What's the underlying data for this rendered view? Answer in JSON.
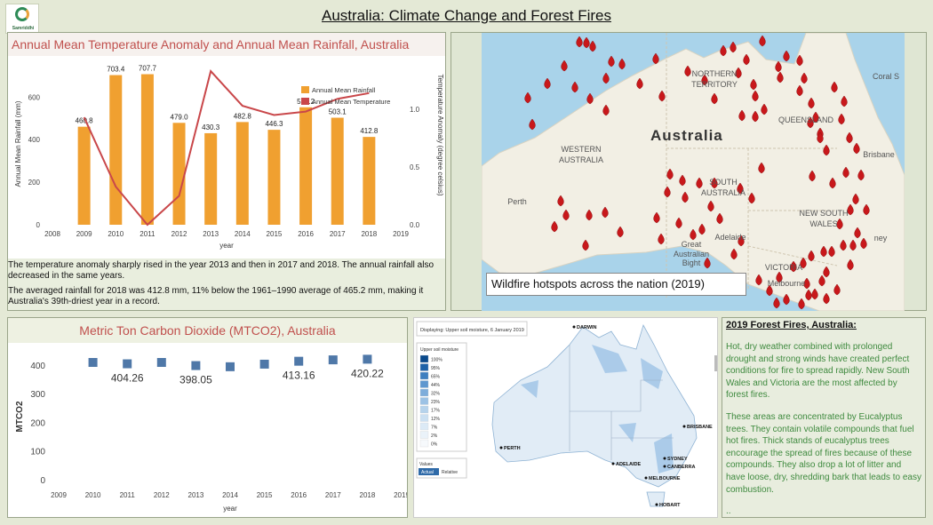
{
  "dashboard": {
    "title": "Australia: Climate Change and Forest Fires",
    "logo_text": "Samriddhi"
  },
  "temp_panel": {
    "title": "Annual Mean Temperature Anomaly and Annual Mean Rainfall, Australia",
    "note1": "The temperature anomaly sharply rised in the year 2013 and then in 2017 and 2018. The annual rainfall also decreased in the same years.",
    "note2": "The averaged rainfall for 2018 was 412.8 mm, 11% below the 1961–1990 average of 465.2 mm, making it Australia's 39th-driest year in a record."
  },
  "chart_data": [
    {
      "type": "bar",
      "title": "Annual Mean Temperature Anomaly and Annual Mean Rainfall, Australia",
      "xlabel": "year",
      "ylabel": "Annual Mean Rainfall (mm)",
      "y2label": "Temperature Anomaly (degree celsius)",
      "x_ticks": [
        "2008",
        "2009",
        "2010",
        "2011",
        "2012",
        "2013",
        "2014",
        "2015",
        "2016",
        "2017",
        "2018",
        "2019"
      ],
      "y_ticks": [
        "0",
        "200",
        "400",
        "600"
      ],
      "y2_ticks": [
        "0.0",
        "0.5",
        "1.0"
      ],
      "ylim": [
        0,
        760
      ],
      "y2lim": [
        0,
        1.4
      ],
      "legend": {
        "position": "top-right",
        "items": [
          "Annual Mean Rainfall",
          "Annual Mean Temperature"
        ]
      },
      "categories": [
        "2009",
        "2010",
        "2011",
        "2012",
        "2013",
        "2014",
        "2015",
        "2016",
        "2017",
        "2018"
      ],
      "series": [
        {
          "name": "Annual Mean Rainfall",
          "kind": "bar",
          "color": "#f0a030",
          "values": [
            460.8,
            703.4,
            707.7,
            479.0,
            430.3,
            482.8,
            446.3,
            552.2,
            503.1,
            412.8
          ],
          "labels": [
            "460.8",
            "703.4",
            "707.7",
            "479.0",
            "430.3",
            "482.8",
            "446.3",
            "552.2",
            "503.1",
            "412.8"
          ]
        },
        {
          "name": "Annual Mean Temperature",
          "kind": "line",
          "color": "#c9474a",
          "values": [
            0.93,
            0.33,
            0.0,
            0.25,
            1.33,
            1.03,
            0.95,
            0.98,
            1.09,
            1.14
          ]
        }
      ]
    },
    {
      "type": "scatter",
      "title": "Metric Ton Carbon Dioxide (MTCO2), Australia",
      "xlabel": "year",
      "ylabel": "MTCO2",
      "x_ticks": [
        "2009",
        "2010",
        "2011",
        "2012",
        "2013",
        "2014",
        "2015",
        "2016",
        "2017",
        "2018",
        "2019"
      ],
      "y_ticks": [
        "0",
        "100",
        "200",
        "300",
        "400"
      ],
      "ylim": [
        0,
        440
      ],
      "color": "#4f78a8",
      "x": [
        "2010",
        "2011",
        "2012",
        "2013",
        "2014",
        "2015",
        "2016",
        "2017",
        "2018"
      ],
      "values": [
        409,
        404.26,
        409,
        398.05,
        394,
        403,
        413.16,
        418,
        420.22
      ],
      "labels": [
        "",
        "404.26",
        "",
        "398.05",
        "",
        "",
        "413.16",
        "",
        "420.22"
      ]
    }
  ],
  "map_panel": {
    "caption": "Wildfire hotspots across the nation (2019)",
    "country": "Australia",
    "labels": [
      {
        "t": "NORTHERN",
        "x": 262,
        "y": 49
      },
      {
        "t": "TERRITORY",
        "x": 262,
        "y": 61
      },
      {
        "t": "QUEENSLAND",
        "x": 365,
        "y": 101
      },
      {
        "t": "WESTERN",
        "x": 112,
        "y": 134
      },
      {
        "t": "AUSTRALIA",
        "x": 112,
        "y": 146
      },
      {
        "t": "SOUTH",
        "x": 272,
        "y": 171
      },
      {
        "t": "AUSTRALIA",
        "x": 272,
        "y": 183
      },
      {
        "t": "NEW SOUTH",
        "x": 385,
        "y": 206
      },
      {
        "t": "WALES",
        "x": 385,
        "y": 218
      },
      {
        "t": "Perth",
        "x": 40,
        "y": 193
      },
      {
        "t": "Adelaide",
        "x": 280,
        "y": 233
      },
      {
        "t": "Great",
        "x": 236,
        "y": 241
      },
      {
        "t": "Australian",
        "x": 236,
        "y": 252
      },
      {
        "t": "Bight",
        "x": 236,
        "y": 262
      },
      {
        "t": "Brisbane",
        "x": 447,
        "y": 140
      },
      {
        "t": "Coral S",
        "x": 455,
        "y": 52
      },
      {
        "t": "VICTORIA",
        "x": 340,
        "y": 267
      },
      {
        "t": "Melbourne",
        "x": 343,
        "y": 285
      },
      {
        "t": "ney",
        "x": 449,
        "y": 234
      }
    ]
  },
  "co2_panel": {
    "title": "Metric Ton Carbon Dioxide (MTCO2), Australia"
  },
  "moisture_panel": {
    "displaying": "Displaying: Upper soil moisture, 6 January 2019",
    "legend_title": "Upper soil moisture",
    "legend_items": [
      "100%",
      "95%",
      "65%",
      "44%",
      "32%",
      "23%",
      "17%",
      "12%",
      "7%",
      "2%",
      "0%"
    ],
    "legend_colors": [
      "#0b4a8c",
      "#1e62a8",
      "#3e7fc0",
      "#5f97cf",
      "#7eaddb",
      "#9cc2e5",
      "#b6d3ec",
      "#cbe0f2",
      "#dceaf6",
      "#eaf2f9",
      "#f6f9fc"
    ],
    "values_label": "Values",
    "btn_actual": "Actual",
    "btn_relative": "Relative",
    "cities": [
      {
        "t": "DARWIN",
        "x": 183,
        "y": 12
      },
      {
        "t": "BRISBANE",
        "x": 307,
        "y": 124
      },
      {
        "t": "PERTH",
        "x": 101,
        "y": 148
      },
      {
        "t": "ADELAIDE",
        "x": 227,
        "y": 166
      },
      {
        "t": "SYDNEY",
        "x": 285,
        "y": 160
      },
      {
        "t": "CANBERRA",
        "x": 285,
        "y": 169
      },
      {
        "t": "MELBOURNE",
        "x": 264,
        "y": 182
      },
      {
        "t": "HOBART",
        "x": 276,
        "y": 212
      }
    ]
  },
  "text_panel": {
    "title": "2019 Forest Fires, Australia:",
    "para1": "Hot, dry weather combined with prolonged drought and strong winds have created perfect conditions for fire to spread rapidly. New South Wales and Victoria are the most affected by forest fires.",
    "para2": "These areas are concentrated by Eucalyptus trees. They contain volatile compounds that fuel hot fires. Thick stands of eucalyptus trees encourage the spread of fires because of these compounds. They also drop a lot of litter and have loose, dry, shredding bark that leads to easy combustion.",
    "trailing": ".."
  },
  "colors": {
    "title_red": "#c0504d",
    "text_green": "#3f8a3f",
    "fire_red": "#c8181b"
  }
}
